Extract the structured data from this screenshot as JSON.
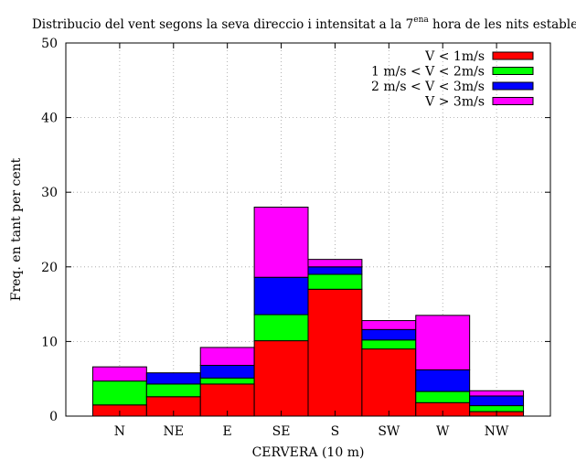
{
  "chart_data": {
    "type": "bar",
    "stacked": true,
    "title": {
      "main": "Distribucio del vent segons la seva direccio i intensitat a la 7",
      "superscript": "ena",
      "rest": " hora de les nits estables"
    },
    "xlabel": "CERVERA (10 m)",
    "ylabel": "Freq. en tant per cent",
    "ylim": [
      0,
      50
    ],
    "yticks": [
      "0",
      "10",
      "20",
      "30",
      "40",
      "50"
    ],
    "grid": true,
    "legend_position": "top-right",
    "categories": [
      "N",
      "NE",
      "E",
      "SE",
      "S",
      "SW",
      "W",
      "NW"
    ],
    "series": [
      {
        "name": "V < 1m/s",
        "color": "#ff0000",
        "values": [
          1.5,
          2.6,
          4.3,
          10.1,
          17.0,
          9.0,
          1.8,
          0.6
        ]
      },
      {
        "name": "1 m/s < V < 2m/s",
        "color": "#00ff00",
        "values": [
          3.2,
          1.7,
          0.8,
          3.5,
          2.0,
          1.2,
          1.5,
          0.8
        ]
      },
      {
        "name": "2 m/s < V < 3m/s",
        "color": "#0000ff",
        "values": [
          0.0,
          1.5,
          1.7,
          5.0,
          1.0,
          1.4,
          2.9,
          1.3
        ]
      },
      {
        "name": "V > 3m/s",
        "color": "#ff00ff",
        "values": [
          1.9,
          0.0,
          2.4,
          9.4,
          1.0,
          1.2,
          7.3,
          0.7
        ]
      }
    ]
  }
}
